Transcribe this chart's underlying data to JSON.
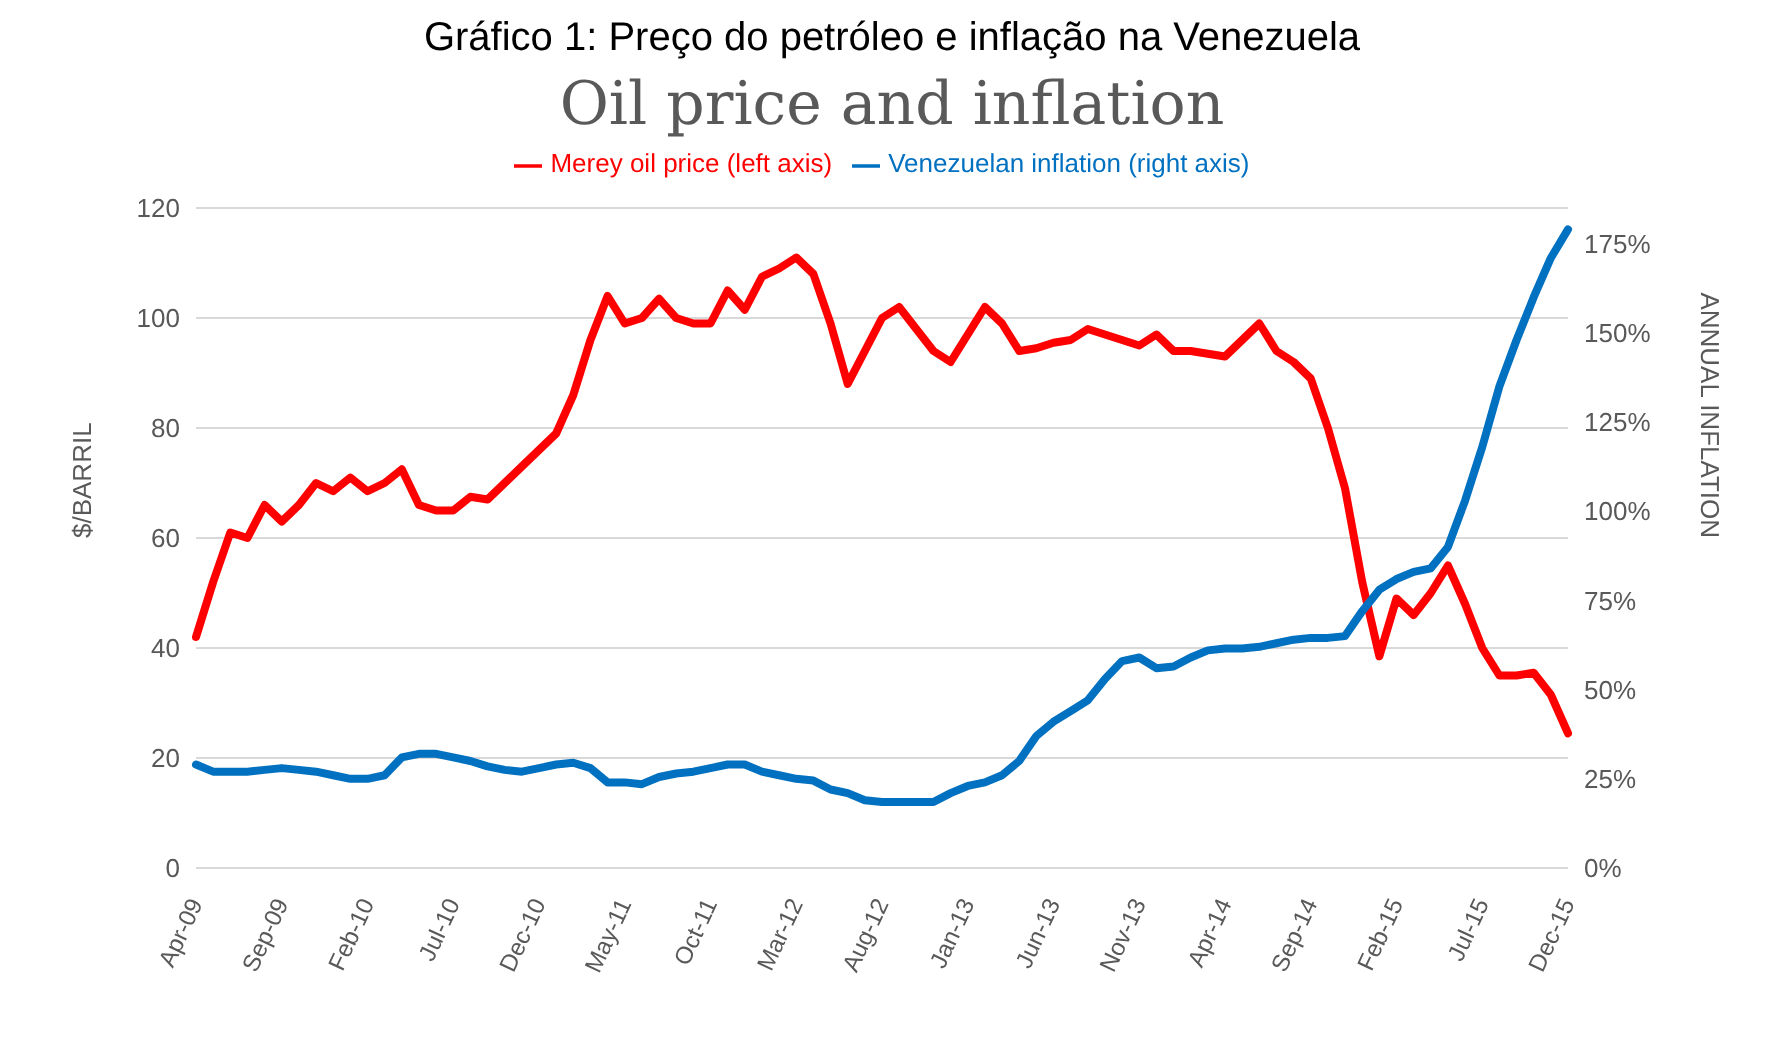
{
  "chart_data": {
    "type": "line",
    "title": "Gráfico 1: Preço do petróleo e inflação na Venezuela",
    "subtitle": "Oil price and inflation",
    "ylabel": "$/BARRIL",
    "y2label": "ANNUAL INFLATION",
    "categories": [
      "Apr-09",
      null,
      null,
      null,
      null,
      "Sep-09",
      null,
      null,
      null,
      null,
      "Feb-10",
      null,
      null,
      null,
      null,
      "Jul-10",
      null,
      null,
      null,
      null,
      "Dec-10",
      null,
      null,
      null,
      null,
      "May-11",
      null,
      null,
      null,
      null,
      "Oct-11",
      null,
      null,
      null,
      null,
      "Mar-12",
      null,
      null,
      null,
      null,
      "Aug-12",
      null,
      null,
      null,
      null,
      "Jan-13",
      null,
      null,
      null,
      null,
      "Jun-13",
      null,
      null,
      null,
      null,
      "Nov-13",
      null,
      null,
      null,
      null,
      "Apr-14",
      null,
      null,
      null,
      null,
      "Sep-14",
      null,
      null,
      null,
      null,
      "Feb-15",
      null,
      null,
      null,
      null,
      "Jul-15",
      null,
      null,
      null,
      null,
      "Dec-15"
    ],
    "series": [
      {
        "name": "Merey oil price (left axis)",
        "color": "#ff0000",
        "values": [
          42,
          52,
          61,
          60,
          66,
          63,
          66,
          70,
          68.5,
          71,
          68.5,
          70,
          72.5,
          66,
          65,
          65,
          67.5,
          67,
          70,
          73,
          76,
          79,
          86,
          96,
          104,
          99,
          100,
          103.5,
          100,
          99,
          99,
          105,
          101.5,
          107.5,
          109,
          111,
          108,
          99,
          88,
          94,
          100,
          102,
          98,
          94,
          92,
          97,
          102,
          99,
          94,
          94.5,
          95.5,
          96,
          98,
          97,
          96,
          95,
          97,
          94,
          94,
          93.5,
          93,
          96,
          99,
          94,
          92,
          89,
          80,
          69,
          52,
          38.5,
          49,
          46,
          50,
          55,
          48,
          40,
          35,
          35,
          35.5,
          31.5,
          24.5
        ]
      },
      {
        "name": "Venezuelan inflation (right axis)",
        "color": "#0070c0",
        "axis": "y2",
        "values": [
          29,
          27,
          27,
          27,
          27.5,
          28,
          27.5,
          27,
          26,
          25,
          25,
          26,
          31,
          32,
          32,
          31,
          30,
          28.5,
          27.5,
          27,
          28,
          29,
          29.5,
          28,
          24,
          24,
          23.5,
          25.5,
          26.5,
          27,
          28,
          29,
          29,
          27,
          26,
          25,
          24.5,
          22,
          21,
          19,
          18.5,
          18.5,
          18.5,
          18.5,
          21,
          23,
          24,
          26,
          30,
          37,
          41,
          44,
          47,
          53,
          58,
          59,
          56,
          56.5,
          59,
          61,
          61.5,
          61.5,
          62,
          63,
          64,
          64.5,
          64.5,
          65,
          72,
          78,
          81,
          83,
          84,
          90,
          103,
          118,
          135,
          148,
          160,
          171,
          179
        ]
      }
    ],
    "ylim": [
      0,
      120
    ],
    "yticks": [
      0,
      20,
      40,
      60,
      80,
      100,
      120
    ],
    "y2lim": [
      0,
      185
    ],
    "y2ticks": [
      {
        "value": 0,
        "label": "0%"
      },
      {
        "value": 25,
        "label": "25%"
      },
      {
        "value": 50,
        "label": "50%"
      },
      {
        "value": 75,
        "label": "75%"
      },
      {
        "value": 100,
        "label": "100%"
      },
      {
        "value": 125,
        "label": "125%"
      },
      {
        "value": 150,
        "label": "150%"
      },
      {
        "value": 175,
        "label": "175%"
      }
    ],
    "grid": "y",
    "legend": "top",
    "marker": "none",
    "line_style": "solid"
  }
}
